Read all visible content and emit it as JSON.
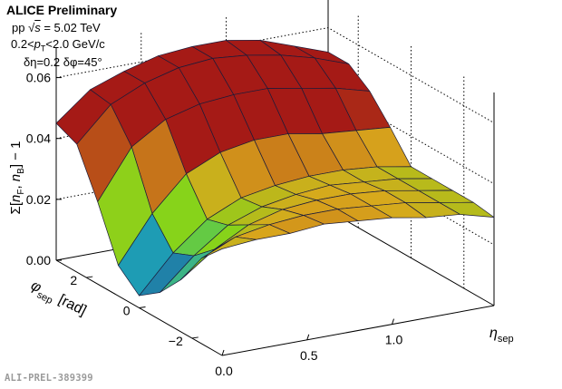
{
  "header": {
    "title": "ALICE Preliminary",
    "line_system": "pp",
    "line_sqrt_symbol": "√",
    "line_s": "s",
    "line_energy": " = 5.02 TeV",
    "line_pt_prefix": "0.2<",
    "line_pt_p": "p",
    "line_pt_sub": "T",
    "line_pt_suffix": "<2.0 GeV/c",
    "line_bins": "δη=0.2  δφ=45°"
  },
  "footer": {
    "preliminary_id": "ALI-PREL-389399"
  },
  "colors": {
    "low": "#2a0a6e",
    "mid_low": "#1da3b8",
    "mid": "#7ed81a",
    "mid_high": "#d9a81c",
    "high": "#a51a16",
    "mesh": "#1b1b3a"
  },
  "chart_data": {
    "type": "surface",
    "title": "",
    "xlabel_main": "η",
    "xlabel_sub": "sep",
    "ylabel_main": "φ",
    "ylabel_sub": "sep",
    "ylabel_unit": "[rad]",
    "zlabel": "Σ[n_F, n_B] − 1",
    "zlabel_parts": {
      "sigma": "Σ[",
      "n1": "n",
      "sub1": "F",
      "comma": ", ",
      "n2": "n",
      "sub2": "B",
      "tail": "] − 1"
    },
    "xlim": [
      0.0,
      1.6
    ],
    "ylim": [
      -3.14,
      3.14
    ],
    "zlim": [
      0.0,
      0.07
    ],
    "x_ticks": [
      "0.0",
      "0.5",
      "1.0"
    ],
    "x_tick_values": [
      0.0,
      0.5,
      1.0
    ],
    "y_ticks": [
      "−2",
      "0",
      "2"
    ],
    "y_tick_values": [
      -2,
      0,
      2
    ],
    "z_ticks": [
      "0.00",
      "0.02",
      "0.04",
      "0.06"
    ],
    "z_tick_values": [
      0.0,
      0.02,
      0.04,
      0.06
    ],
    "x": [
      0.0,
      0.2,
      0.4,
      0.6,
      0.8,
      1.0,
      1.2,
      1.4,
      1.6
    ],
    "y": [
      -3.14,
      -2.36,
      -1.57,
      -0.79,
      0.0,
      0.79,
      1.57,
      2.36,
      3.14
    ],
    "z": [
      [
        0.035,
        0.036,
        0.036,
        0.037,
        0.036,
        0.035,
        0.033,
        0.032,
        0.029
      ],
      [
        0.028,
        0.033,
        0.035,
        0.036,
        0.036,
        0.035,
        0.034,
        0.032,
        0.03
      ],
      [
        0.017,
        0.025,
        0.031,
        0.034,
        0.035,
        0.035,
        0.034,
        0.032,
        0.03
      ],
      [
        0.009,
        0.019,
        0.027,
        0.031,
        0.033,
        0.034,
        0.033,
        0.032,
        0.03
      ],
      [
        0.004,
        0.016,
        0.025,
        0.03,
        0.032,
        0.033,
        0.033,
        0.032,
        0.03
      ],
      [
        0.01,
        0.025,
        0.036,
        0.041,
        0.043,
        0.043,
        0.041,
        0.04,
        0.039
      ],
      [
        0.027,
        0.043,
        0.05,
        0.053,
        0.054,
        0.054,
        0.052,
        0.05,
        0.047
      ],
      [
        0.042,
        0.053,
        0.058,
        0.061,
        0.062,
        0.061,
        0.059,
        0.056,
        0.052
      ],
      [
        0.045,
        0.054,
        0.058,
        0.061,
        0.062,
        0.062,
        0.06,
        0.056,
        0.052
      ]
    ]
  }
}
